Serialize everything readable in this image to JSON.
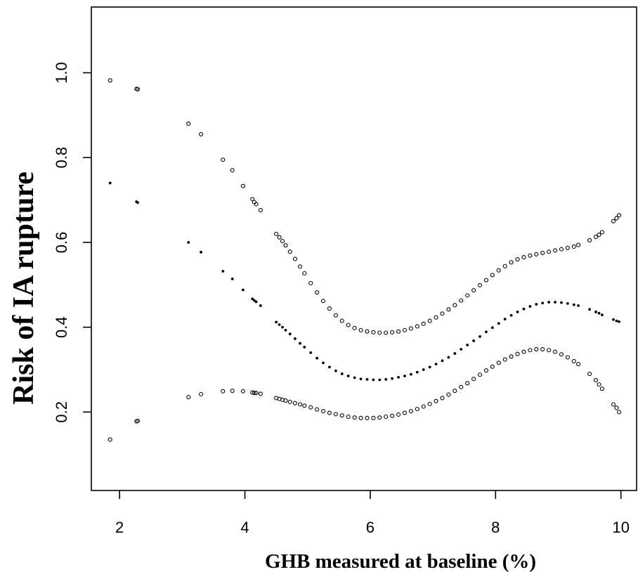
{
  "chart_data": {
    "type": "scatter",
    "xlabel": "GHB measured at baseline (%)",
    "ylabel": "Risk of IA rupture",
    "xlim": [
      1.55,
      10.25
    ],
    "ylim": [
      0.015,
      1.155
    ],
    "xticks": [
      2,
      4,
      6,
      8,
      10
    ],
    "yticks": [
      0.2,
      0.4,
      0.6,
      0.8,
      1.0
    ],
    "ytick_labels": [
      "0.2",
      "0.4",
      "0.6",
      "0.8",
      "1.0"
    ],
    "grid": false,
    "legend": "none",
    "series": [
      {
        "marker": "open-circle",
        "points": [
          [
            1.85,
            0.982
          ],
          [
            2.27,
            0.962
          ],
          [
            2.29,
            0.961
          ],
          [
            3.1,
            0.88
          ],
          [
            3.3,
            0.855
          ],
          [
            3.65,
            0.795
          ],
          [
            3.8,
            0.77
          ],
          [
            3.97,
            0.733
          ],
          [
            4.12,
            0.702
          ],
          [
            4.15,
            0.695
          ],
          [
            4.18,
            0.69
          ],
          [
            4.25,
            0.676
          ],
          [
            4.5,
            0.62
          ],
          [
            4.55,
            0.612
          ],
          [
            4.6,
            0.603
          ],
          [
            4.65,
            0.593
          ],
          [
            4.72,
            0.578
          ],
          [
            4.8,
            0.561
          ],
          [
            4.88,
            0.543
          ],
          [
            4.95,
            0.527
          ],
          [
            5.05,
            0.504
          ],
          [
            5.15,
            0.482
          ],
          [
            5.25,
            0.462
          ],
          [
            5.35,
            0.444
          ],
          [
            5.45,
            0.428
          ],
          [
            5.55,
            0.415
          ],
          [
            5.65,
            0.405
          ],
          [
            5.75,
            0.398
          ],
          [
            5.85,
            0.393
          ],
          [
            5.95,
            0.39
          ],
          [
            6.05,
            0.388
          ],
          [
            6.15,
            0.387
          ],
          [
            6.25,
            0.387
          ],
          [
            6.35,
            0.388
          ],
          [
            6.45,
            0.39
          ],
          [
            6.55,
            0.393
          ],
          [
            6.65,
            0.397
          ],
          [
            6.75,
            0.402
          ],
          [
            6.85,
            0.408
          ],
          [
            6.95,
            0.415
          ],
          [
            7.05,
            0.423
          ],
          [
            7.15,
            0.432
          ],
          [
            7.25,
            0.442
          ],
          [
            7.35,
            0.452
          ],
          [
            7.45,
            0.463
          ],
          [
            7.55,
            0.475
          ],
          [
            7.65,
            0.487
          ],
          [
            7.75,
            0.499
          ],
          [
            7.85,
            0.511
          ],
          [
            7.95,
            0.523
          ],
          [
            8.05,
            0.534
          ],
          [
            8.15,
            0.544
          ],
          [
            8.25,
            0.553
          ],
          [
            8.35,
            0.56
          ],
          [
            8.45,
            0.565
          ],
          [
            8.55,
            0.569
          ],
          [
            8.65,
            0.572
          ],
          [
            8.75,
            0.575
          ],
          [
            8.85,
            0.578
          ],
          [
            8.95,
            0.581
          ],
          [
            9.05,
            0.584
          ],
          [
            9.15,
            0.587
          ],
          [
            9.25,
            0.59
          ],
          [
            9.32,
            0.594
          ],
          [
            9.5,
            0.605
          ],
          [
            9.6,
            0.613
          ],
          [
            9.65,
            0.618
          ],
          [
            9.7,
            0.624
          ],
          [
            9.88,
            0.65
          ],
          [
            9.93,
            0.657
          ],
          [
            9.97,
            0.664
          ]
        ]
      },
      {
        "marker": "filled-dot",
        "points": [
          [
            1.85,
            0.74
          ],
          [
            2.27,
            0.696
          ],
          [
            2.29,
            0.694
          ],
          [
            3.1,
            0.6
          ],
          [
            3.3,
            0.577
          ],
          [
            3.65,
            0.532
          ],
          [
            3.8,
            0.514
          ],
          [
            3.97,
            0.488
          ],
          [
            4.12,
            0.467
          ],
          [
            4.15,
            0.463
          ],
          [
            4.18,
            0.46
          ],
          [
            4.25,
            0.451
          ],
          [
            4.5,
            0.412
          ],
          [
            4.55,
            0.406
          ],
          [
            4.6,
            0.4
          ],
          [
            4.65,
            0.393
          ],
          [
            4.72,
            0.384
          ],
          [
            4.8,
            0.373
          ],
          [
            4.88,
            0.362
          ],
          [
            4.95,
            0.353
          ],
          [
            5.05,
            0.34
          ],
          [
            5.15,
            0.327
          ],
          [
            5.25,
            0.316
          ],
          [
            5.35,
            0.306
          ],
          [
            5.45,
            0.297
          ],
          [
            5.55,
            0.29
          ],
          [
            5.65,
            0.285
          ],
          [
            5.75,
            0.281
          ],
          [
            5.85,
            0.278
          ],
          [
            5.95,
            0.277
          ],
          [
            6.05,
            0.276
          ],
          [
            6.15,
            0.276
          ],
          [
            6.25,
            0.277
          ],
          [
            6.35,
            0.279
          ],
          [
            6.45,
            0.282
          ],
          [
            6.55,
            0.285
          ],
          [
            6.65,
            0.289
          ],
          [
            6.75,
            0.294
          ],
          [
            6.85,
            0.3
          ],
          [
            6.95,
            0.306
          ],
          [
            7.05,
            0.313
          ],
          [
            7.15,
            0.321
          ],
          [
            7.25,
            0.329
          ],
          [
            7.35,
            0.338
          ],
          [
            7.45,
            0.348
          ],
          [
            7.55,
            0.358
          ],
          [
            7.65,
            0.368
          ],
          [
            7.75,
            0.378
          ],
          [
            7.85,
            0.389
          ],
          [
            7.95,
            0.399
          ],
          [
            8.05,
            0.409
          ],
          [
            8.15,
            0.419
          ],
          [
            8.25,
            0.428
          ],
          [
            8.35,
            0.436
          ],
          [
            8.45,
            0.443
          ],
          [
            8.55,
            0.449
          ],
          [
            8.65,
            0.454
          ],
          [
            8.75,
            0.457
          ],
          [
            8.85,
            0.459
          ],
          [
            8.95,
            0.459
          ],
          [
            9.05,
            0.458
          ],
          [
            9.15,
            0.456
          ],
          [
            9.25,
            0.453
          ],
          [
            9.32,
            0.451
          ],
          [
            9.5,
            0.442
          ],
          [
            9.6,
            0.436
          ],
          [
            9.65,
            0.433
          ],
          [
            9.7,
            0.429
          ],
          [
            9.88,
            0.418
          ],
          [
            9.93,
            0.415
          ],
          [
            9.97,
            0.413
          ]
        ]
      },
      {
        "marker": "open-circle",
        "points": [
          [
            1.85,
            0.135
          ],
          [
            2.27,
            0.178
          ],
          [
            2.29,
            0.179
          ],
          [
            3.1,
            0.235
          ],
          [
            3.3,
            0.242
          ],
          [
            3.65,
            0.249
          ],
          [
            3.8,
            0.25
          ],
          [
            3.97,
            0.249
          ],
          [
            4.12,
            0.246
          ],
          [
            4.15,
            0.245
          ],
          [
            4.18,
            0.245
          ],
          [
            4.25,
            0.243
          ],
          [
            4.5,
            0.233
          ],
          [
            4.55,
            0.231
          ],
          [
            4.6,
            0.229
          ],
          [
            4.65,
            0.227
          ],
          [
            4.72,
            0.224
          ],
          [
            4.8,
            0.221
          ],
          [
            4.88,
            0.218
          ],
          [
            4.95,
            0.215
          ],
          [
            5.05,
            0.211
          ],
          [
            5.15,
            0.206
          ],
          [
            5.25,
            0.202
          ],
          [
            5.35,
            0.198
          ],
          [
            5.45,
            0.195
          ],
          [
            5.55,
            0.192
          ],
          [
            5.65,
            0.189
          ],
          [
            5.75,
            0.187
          ],
          [
            5.85,
            0.186
          ],
          [
            5.95,
            0.186
          ],
          [
            6.05,
            0.186
          ],
          [
            6.15,
            0.187
          ],
          [
            6.25,
            0.189
          ],
          [
            6.35,
            0.191
          ],
          [
            6.45,
            0.194
          ],
          [
            6.55,
            0.198
          ],
          [
            6.65,
            0.202
          ],
          [
            6.75,
            0.207
          ],
          [
            6.85,
            0.213
          ],
          [
            6.95,
            0.219
          ],
          [
            7.05,
            0.226
          ],
          [
            7.15,
            0.233
          ],
          [
            7.25,
            0.241
          ],
          [
            7.35,
            0.25
          ],
          [
            7.45,
            0.259
          ],
          [
            7.55,
            0.268
          ],
          [
            7.65,
            0.278
          ],
          [
            7.75,
            0.288
          ],
          [
            7.85,
            0.298
          ],
          [
            7.95,
            0.307
          ],
          [
            8.05,
            0.316
          ],
          [
            8.15,
            0.324
          ],
          [
            8.25,
            0.331
          ],
          [
            8.35,
            0.337
          ],
          [
            8.45,
            0.342
          ],
          [
            8.55,
            0.346
          ],
          [
            8.65,
            0.348
          ],
          [
            8.75,
            0.348
          ],
          [
            8.85,
            0.346
          ],
          [
            8.95,
            0.342
          ],
          [
            9.05,
            0.336
          ],
          [
            9.15,
            0.329
          ],
          [
            9.25,
            0.32
          ],
          [
            9.32,
            0.313
          ],
          [
            9.5,
            0.29
          ],
          [
            9.6,
            0.275
          ],
          [
            9.65,
            0.265
          ],
          [
            9.7,
            0.255
          ],
          [
            9.88,
            0.218
          ],
          [
            9.93,
            0.21
          ],
          [
            9.97,
            0.2
          ]
        ]
      }
    ]
  }
}
